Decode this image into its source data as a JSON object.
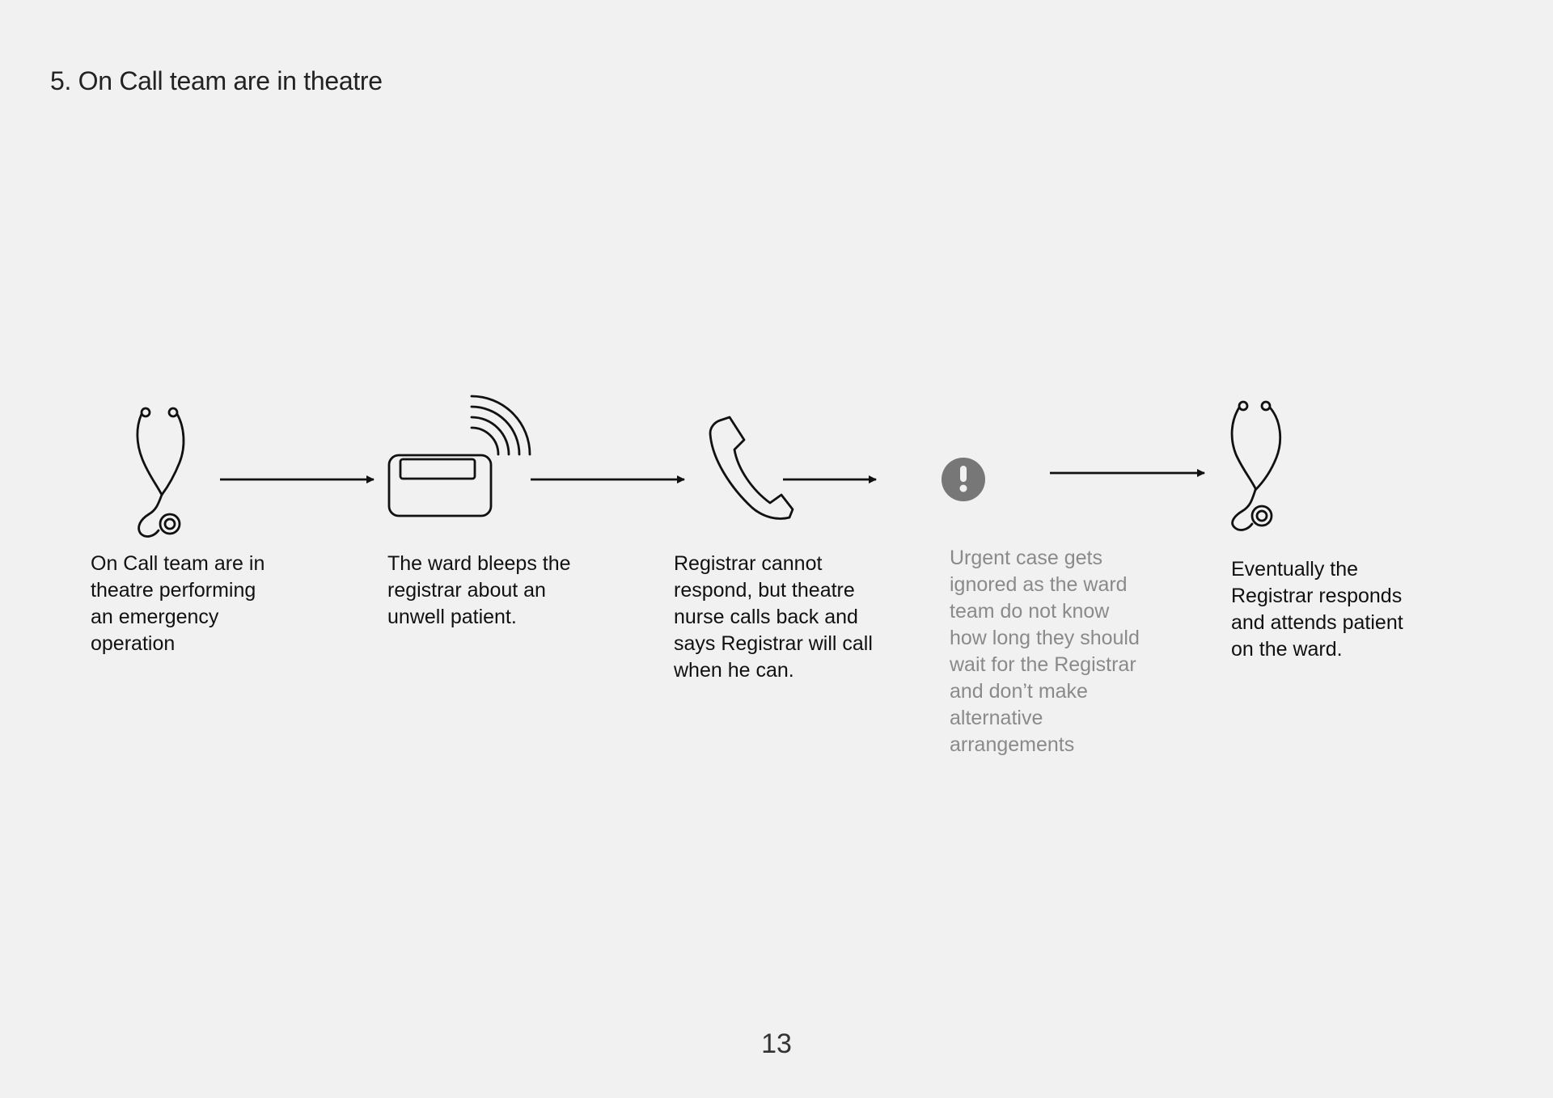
{
  "page": {
    "title": "5. On Call team are in theatre",
    "page_number": "13",
    "background": "#f1f1f1",
    "text_color": "#111111",
    "muted_text_color": "#8a8a8a",
    "icon_color": "#111111",
    "alert_icon_color": "#777777"
  },
  "steps": [
    {
      "icon": "stethoscope-icon",
      "lines": [
        "On Call team are in",
        "theatre performing",
        "an emergency",
        "operation"
      ]
    },
    {
      "icon": "pager-icon",
      "lines": [
        "The ward bleeps the",
        "registrar about an",
        "unwell patient."
      ]
    },
    {
      "icon": "phone-icon",
      "lines": [
        "Registrar cannot",
        "respond, but theatre",
        "nurse calls back and",
        "says Registrar will call",
        "when he can."
      ]
    },
    {
      "icon": "alert-icon",
      "muted": true,
      "lines": [
        "Urgent case gets",
        "ignored as the ward",
        "team do not know",
        "how long they should",
        "wait for the Registrar",
        "and don’t make",
        "alternative",
        "arrangements"
      ]
    },
    {
      "icon": "stethoscope-icon",
      "lines": [
        "Eventually the",
        "Registrar responds",
        "and attends patient",
        "on the ward."
      ]
    }
  ]
}
